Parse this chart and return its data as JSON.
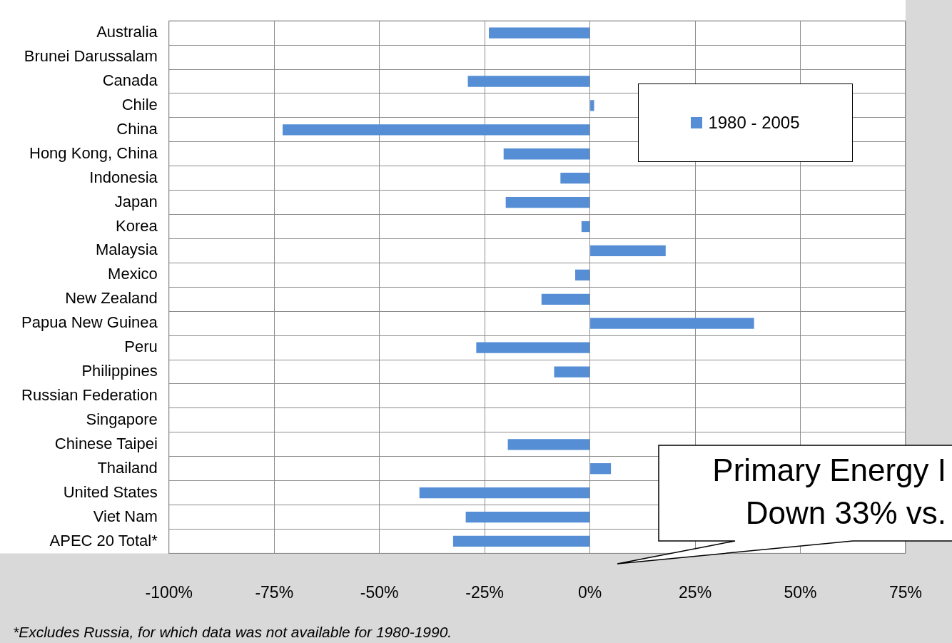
{
  "chart_data": {
    "type": "bar",
    "orientation": "horizontal",
    "categories": [
      "Australia",
      "Brunei Darussalam",
      "Canada",
      "Chile",
      "China",
      "Hong Kong, China",
      "Indonesia",
      "Japan",
      "Korea",
      "Malaysia",
      "Mexico",
      "New Zealand",
      "Papua New Guinea",
      "Peru",
      "Philippines",
      "Russian Federation",
      "Singapore",
      "Chinese Taipei",
      "Thailand",
      "United States",
      "Viet Nam",
      "APEC 20 Total*"
    ],
    "series": [
      {
        "name": "1980 - 2005",
        "color": "#558ed5",
        "values": [
          -24,
          null,
          -29,
          1,
          -73,
          -20.5,
          -7,
          -20,
          -2,
          18,
          -3.5,
          -11.5,
          39,
          -27,
          -8.5,
          null,
          null,
          -19.5,
          5,
          -40.5,
          -29.5,
          -32.5
        ]
      }
    ],
    "xlim": [
      -100,
      75
    ],
    "xticks": [
      {
        "value": -100,
        "label": "-100%"
      },
      {
        "value": -75,
        "label": "-75%"
      },
      {
        "value": -50,
        "label": "-50%"
      },
      {
        "value": -25,
        "label": "-25%"
      },
      {
        "value": 0,
        "label": "0%"
      },
      {
        "value": 25,
        "label": "25%"
      },
      {
        "value": 50,
        "label": "50%"
      },
      {
        "value": 75,
        "label": "75%"
      }
    ],
    "grid": true,
    "legend": "top right",
    "annotations": [
      "Primary Energy I\nDown 33% vs.",
      "*Excludes Russia, for which data was not available for 1980-1990."
    ]
  }
}
